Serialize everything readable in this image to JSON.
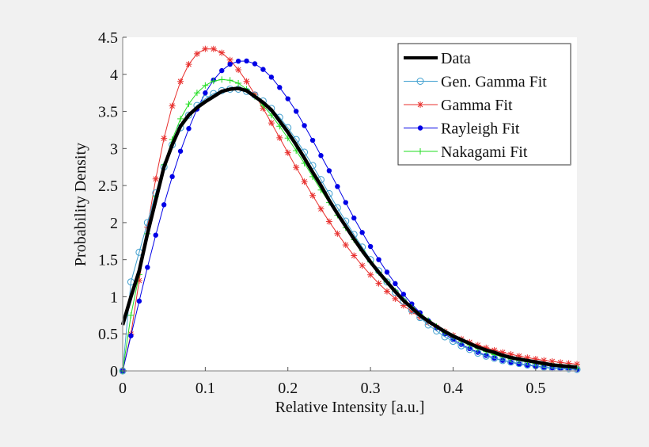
{
  "chart_data": {
    "type": "line",
    "title": "",
    "xlabel": "Relative Intensity [a.u.]",
    "ylabel": "Probability Density",
    "xlim": [
      0,
      0.55
    ],
    "ylim": [
      0,
      4.5
    ],
    "xticks": [
      "0",
      "0.1",
      "0.2",
      "0.3",
      "0.4",
      "0.5"
    ],
    "yticks": [
      "0",
      "0.5",
      "1",
      "1.5",
      "2",
      "2.5",
      "3",
      "3.5",
      "4",
      "4.5"
    ],
    "grid": false,
    "legend_position": "top-right",
    "x": [
      0,
      0.01,
      0.02,
      0.03,
      0.04,
      0.05,
      0.06,
      0.07,
      0.08,
      0.09,
      0.1,
      0.11,
      0.12,
      0.13,
      0.14,
      0.15,
      0.16,
      0.17,
      0.18,
      0.19,
      0.2,
      0.21,
      0.22,
      0.23,
      0.24,
      0.25,
      0.26,
      0.27,
      0.28,
      0.29,
      0.3,
      0.31,
      0.32,
      0.33,
      0.34,
      0.35,
      0.36,
      0.37,
      0.38,
      0.39,
      0.4,
      0.41,
      0.42,
      0.43,
      0.44,
      0.45,
      0.46,
      0.47,
      0.48,
      0.49,
      0.5,
      0.51,
      0.52,
      0.53,
      0.54,
      0.55
    ],
    "series": [
      {
        "name": "Data",
        "color": "#000000",
        "marker": "none",
        "values": [
          0.62,
          1.0,
          1.35,
          1.85,
          2.3,
          2.75,
          3.05,
          3.3,
          3.45,
          3.55,
          3.63,
          3.7,
          3.77,
          3.8,
          3.81,
          3.78,
          3.7,
          3.62,
          3.52,
          3.37,
          3.22,
          3.05,
          2.87,
          2.68,
          2.5,
          2.3,
          2.12,
          1.95,
          1.78,
          1.62,
          1.47,
          1.33,
          1.2,
          1.07,
          0.95,
          0.85,
          0.75,
          0.67,
          0.6,
          0.53,
          0.47,
          0.42,
          0.37,
          0.32,
          0.28,
          0.25,
          0.21,
          0.18,
          0.16,
          0.14,
          0.12,
          0.1,
          0.08,
          0.07,
          0.06,
          0.05
        ]
      },
      {
        "name": "Gen. Gamma Fit",
        "color": "#3f9fcf",
        "marker": "circle",
        "values": [
          0,
          1.2,
          1.6,
          2.0,
          2.4,
          2.75,
          3.05,
          3.28,
          3.45,
          3.58,
          3.67,
          3.74,
          3.78,
          3.8,
          3.8,
          3.77,
          3.72,
          3.64,
          3.54,
          3.42,
          3.28,
          3.12,
          2.95,
          2.77,
          2.58,
          2.39,
          2.2,
          2.02,
          1.84,
          1.67,
          1.5,
          1.35,
          1.2,
          1.06,
          0.94,
          0.82,
          0.72,
          0.62,
          0.54,
          0.46,
          0.4,
          0.34,
          0.29,
          0.24,
          0.2,
          0.17,
          0.14,
          0.12,
          0.1,
          0.08,
          0.07,
          0.05,
          0.04,
          0.04,
          0.03,
          0.02
        ]
      },
      {
        "name": "Gamma Fit",
        "color": "#e8302e",
        "marker": "star",
        "values": [
          0,
          0.497,
          1.218,
          1.94,
          2.589,
          3.136,
          3.574,
          3.904,
          4.135,
          4.277,
          4.343,
          4.342,
          4.29,
          4.193,
          4.061,
          3.905,
          3.729,
          3.541,
          3.344,
          3.144,
          2.943,
          2.745,
          2.552,
          2.365,
          2.185,
          2.014,
          1.851,
          1.699,
          1.555,
          1.421,
          1.296,
          1.18,
          1.073,
          0.974,
          0.883,
          0.799,
          0.723,
          0.653,
          0.589,
          0.531,
          0.478,
          0.43,
          0.387,
          0.347,
          0.312,
          0.279,
          0.25,
          0.224,
          0.2,
          0.179,
          0.16,
          0.143,
          0.128,
          0.114,
          0.102,
          0.091
        ]
      },
      {
        "name": "Rayleigh Fit",
        "color": "#0000e6",
        "marker": "dot",
        "values": [
          0,
          0.474,
          0.942,
          1.397,
          1.831,
          2.241,
          2.62,
          2.963,
          3.268,
          3.531,
          3.749,
          3.924,
          4.05,
          4.136,
          4.177,
          4.18,
          4.142,
          4.066,
          3.962,
          3.823,
          3.67,
          3.501,
          3.309,
          3.11,
          2.905,
          2.7,
          2.487,
          2.271,
          2.062,
          1.867,
          1.678,
          1.501,
          1.332,
          1.177,
          1.033,
          0.903,
          0.785,
          0.678,
          0.584,
          0.499,
          0.423,
          0.357,
          0.301,
          0.251,
          0.209,
          0.173,
          0.142,
          0.117,
          0.095,
          0.077,
          0.062,
          0.05,
          0.04,
          0.032,
          0.025,
          0.02
        ]
      },
      {
        "name": "Nakagami Fit",
        "color": "#22dd22",
        "marker": "plus",
        "values": [
          0,
          0.75,
          1.3,
          1.85,
          2.35,
          2.78,
          3.12,
          3.4,
          3.6,
          3.75,
          3.85,
          3.91,
          3.93,
          3.92,
          3.88,
          3.8,
          3.7,
          3.58,
          3.45,
          3.3,
          3.14,
          2.97,
          2.8,
          2.62,
          2.44,
          2.27,
          2.1,
          1.93,
          1.77,
          1.62,
          1.47,
          1.33,
          1.2,
          1.08,
          0.96,
          0.86,
          0.76,
          0.68,
          0.6,
          0.52,
          0.46,
          0.4,
          0.35,
          0.3,
          0.26,
          0.22,
          0.19,
          0.16,
          0.14,
          0.12,
          0.1,
          0.08,
          0.07,
          0.06,
          0.05,
          0.04
        ]
      }
    ]
  }
}
